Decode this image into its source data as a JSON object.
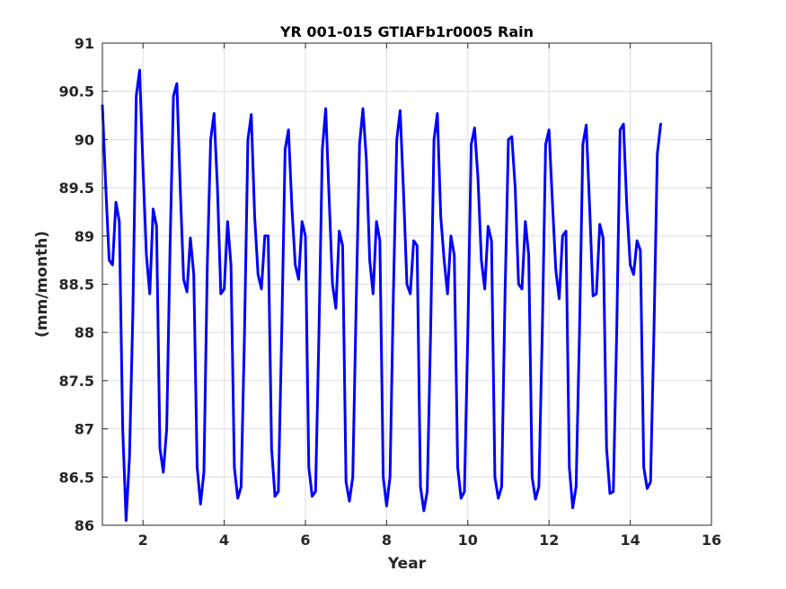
{
  "chart_data": {
    "type": "line",
    "title": "YR 001-015 GTIAFb1r0005 Rain",
    "xlabel": "Year",
    "ylabel": "(mm/month)",
    "xlim": [
      1,
      16
    ],
    "ylim": [
      86,
      91
    ],
    "xticks": [
      2,
      4,
      6,
      8,
      10,
      12,
      14,
      16
    ],
    "yticks": [
      86,
      86.5,
      87,
      87.5,
      88,
      88.5,
      89,
      89.5,
      90,
      90.5,
      91
    ],
    "xtick_labels": [
      "2",
      "4",
      "6",
      "8",
      "10",
      "12",
      "14",
      "16"
    ],
    "ytick_labels": [
      "86",
      "86.5",
      "87",
      "87.5",
      "88",
      "88.5",
      "89",
      "89.5",
      "90",
      "90.5",
      "91"
    ],
    "grid": true,
    "series": [
      {
        "color": "#0000ff",
        "x_start": 1,
        "x_step": 0.08333333333333333,
        "values": [
          90.35,
          89.5,
          88.75,
          88.7,
          89.35,
          89.15,
          87.0,
          86.05,
          86.7,
          88.2,
          90.45,
          90.72,
          89.7,
          88.8,
          88.4,
          89.28,
          89.1,
          86.8,
          86.55,
          87.0,
          88.9,
          90.45,
          90.58,
          89.5,
          88.55,
          88.42,
          88.98,
          88.6,
          86.6,
          86.22,
          86.55,
          88.7,
          90.0,
          90.27,
          89.5,
          88.4,
          88.45,
          89.15,
          88.7,
          86.6,
          86.28,
          86.4,
          88.0,
          90.0,
          90.26,
          89.2,
          88.6,
          88.45,
          89.0,
          89.0,
          86.8,
          86.3,
          86.35,
          88.0,
          89.9,
          90.1,
          89.3,
          88.7,
          88.55,
          89.15,
          89.0,
          86.6,
          86.3,
          86.35,
          88.0,
          89.9,
          90.32,
          89.4,
          88.5,
          88.25,
          89.05,
          88.9,
          86.45,
          86.25,
          86.5,
          88.3,
          89.95,
          90.32,
          89.8,
          88.75,
          88.4,
          89.15,
          88.95,
          86.5,
          86.2,
          86.5,
          88.4,
          90.0,
          90.3,
          89.45,
          88.5,
          88.4,
          88.95,
          88.9,
          86.4,
          86.15,
          86.35,
          88.0,
          90.0,
          90.27,
          89.2,
          88.75,
          88.4,
          89.0,
          88.8,
          86.6,
          86.28,
          86.35,
          88.0,
          89.95,
          90.12,
          89.6,
          88.75,
          88.45,
          89.1,
          88.95,
          86.5,
          86.28,
          86.4,
          88.4,
          90.0,
          90.03,
          89.5,
          88.5,
          88.45,
          89.15,
          88.8,
          86.5,
          86.27,
          86.4,
          88.0,
          89.95,
          90.1,
          89.35,
          88.65,
          88.35,
          89.0,
          89.05,
          86.6,
          86.18,
          86.4,
          88.0,
          89.95,
          90.15,
          89.3,
          88.38,
          88.4,
          89.12,
          88.98,
          86.8,
          86.33,
          86.35,
          88.0,
          90.1,
          90.16,
          89.3,
          88.7,
          88.6,
          88.95,
          88.85,
          86.6,
          86.38,
          86.45,
          88.0,
          89.85,
          90.16
        ]
      }
    ]
  }
}
